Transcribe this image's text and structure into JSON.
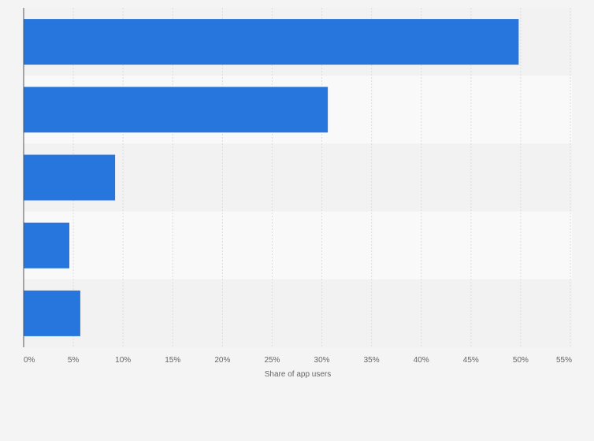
{
  "chart_data": {
    "type": "bar",
    "orientation": "horizontal",
    "categories": [
      "",
      "",
      "",
      "",
      ""
    ],
    "values": [
      49.8,
      30.6,
      9.2,
      4.6,
      5.7
    ],
    "xlabel": "Share of app users",
    "ylabel": "",
    "xlim": [
      0,
      55
    ],
    "xticks": [
      0,
      5,
      10,
      15,
      20,
      25,
      30,
      35,
      40,
      45,
      50,
      55
    ],
    "xtick_labels": [
      "0%",
      "5%",
      "10%",
      "15%",
      "20%",
      "25%",
      "30%",
      "35%",
      "40%",
      "45%",
      "50%",
      "55%"
    ],
    "grid": true,
    "legend": "none"
  },
  "colors": {
    "bar": "#2776dd",
    "background": "#f4f4f4",
    "band_light": "#f9f9f9",
    "band_dark": "#f2f2f2",
    "grid": "#dcdcdc",
    "axis": "#555555"
  }
}
